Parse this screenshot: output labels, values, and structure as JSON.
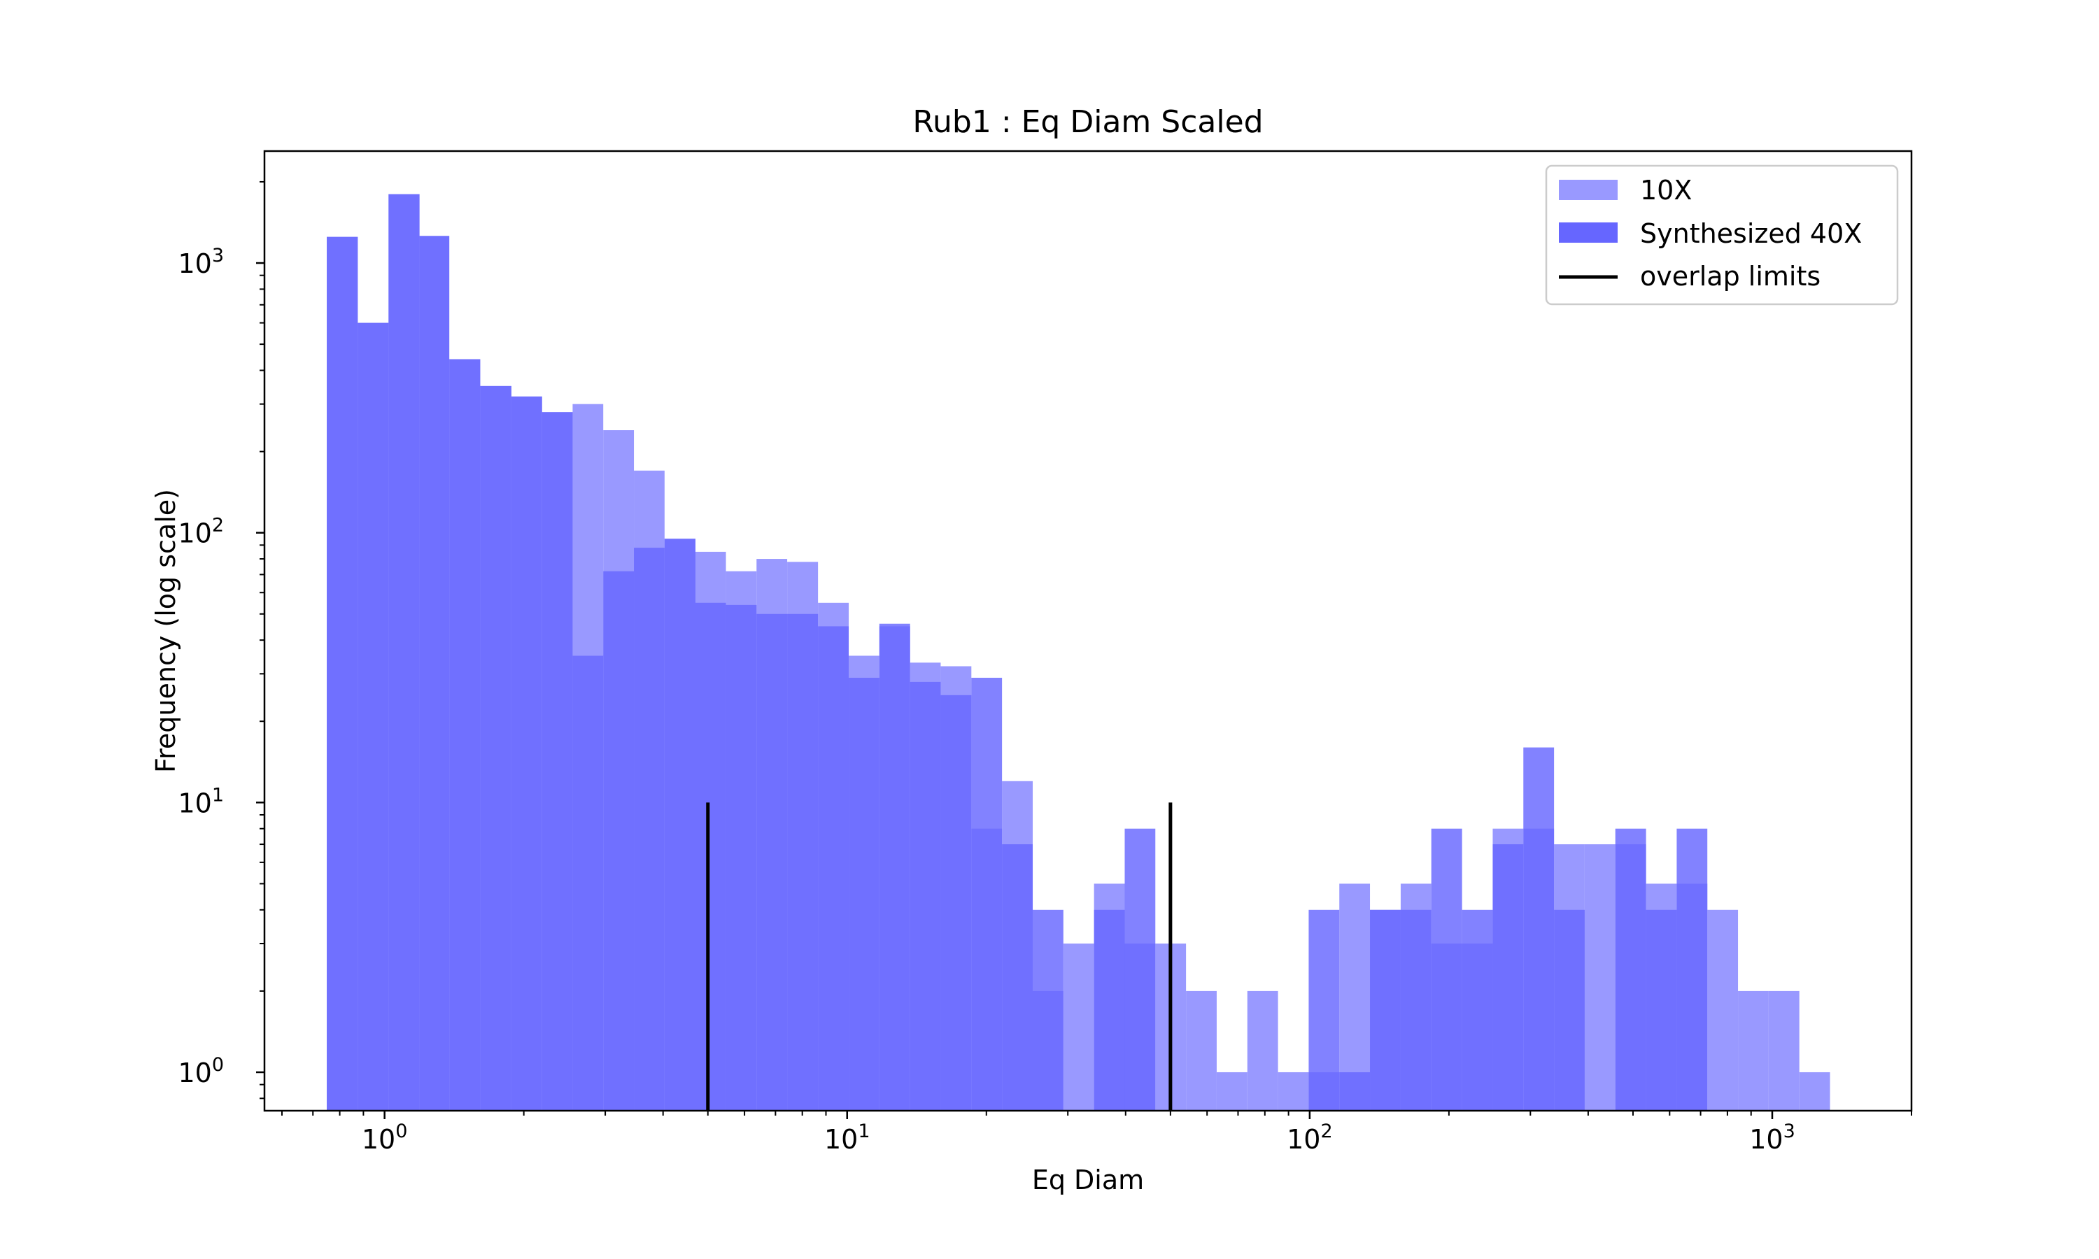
{
  "chart_data": {
    "type": "bar",
    "title": "Rub1 : Eq Diam Scaled",
    "xlabel": "Eq Diam",
    "ylabel": "Frequency (log scale)",
    "xscale": "log",
    "yscale": "log",
    "xlim": [
      0.55,
      2000
    ],
    "ylim": [
      0.72,
      2600
    ],
    "x_ticks": [
      {
        "value": 1,
        "base": "10",
        "exp": "0"
      },
      {
        "value": 10,
        "base": "10",
        "exp": "1"
      },
      {
        "value": 100,
        "base": "10",
        "exp": "2"
      },
      {
        "value": 1000,
        "base": "10",
        "exp": "3"
      }
    ],
    "y_ticks": [
      {
        "value": 1,
        "base": "10",
        "exp": "0"
      },
      {
        "value": 10,
        "base": "10",
        "exp": "1"
      },
      {
        "value": 100,
        "base": "10",
        "exp": "2"
      },
      {
        "value": 1000,
        "base": "10",
        "exp": "3"
      }
    ],
    "legend_position": "top-right",
    "series": [
      {
        "name": "10X",
        "color": "#9999ff",
        "bins": [
          [
            0.75,
            0.875,
            1250
          ],
          [
            0.875,
            1.02,
            600
          ],
          [
            1.02,
            1.19,
            1800
          ],
          [
            1.19,
            1.38,
            1260
          ],
          [
            1.38,
            1.61,
            440
          ],
          [
            1.61,
            1.88,
            350
          ],
          [
            1.88,
            2.19,
            320
          ],
          [
            2.19,
            2.55,
            280
          ],
          [
            2.55,
            2.97,
            300
          ],
          [
            2.97,
            3.46,
            240
          ],
          [
            3.46,
            4.03,
            170
          ],
          [
            4.03,
            4.7,
            95
          ],
          [
            4.7,
            5.47,
            85
          ],
          [
            5.47,
            6.37,
            72
          ],
          [
            6.37,
            7.42,
            80
          ],
          [
            7.42,
            8.65,
            78
          ],
          [
            8.65,
            10.08,
            55
          ],
          [
            10.08,
            11.74,
            35
          ],
          [
            11.74,
            13.68,
            45
          ],
          [
            13.68,
            15.93,
            33
          ],
          [
            15.93,
            18.56,
            32
          ],
          [
            18.56,
            21.62,
            8
          ],
          [
            21.62,
            25.19,
            12
          ],
          [
            25.19,
            29.34,
            2
          ],
          [
            29.34,
            34.18,
            3
          ],
          [
            34.18,
            39.82,
            5
          ],
          [
            39.82,
            46.38,
            3
          ],
          [
            46.38,
            54.03,
            3
          ],
          [
            54.03,
            62.94,
            2
          ],
          [
            62.94,
            73.32,
            1
          ],
          [
            73.32,
            85.41,
            2
          ],
          [
            85.41,
            99.5,
            1
          ],
          [
            99.5,
            115.9,
            1
          ],
          [
            115.9,
            135.0,
            5
          ],
          [
            135.0,
            157.3,
            4
          ],
          [
            157.3,
            183.2,
            5
          ],
          [
            183.2,
            213.5,
            3
          ],
          [
            213.5,
            248.7,
            3
          ],
          [
            248.7,
            289.7,
            8
          ],
          [
            289.7,
            337.5,
            8
          ],
          [
            337.5,
            393.1,
            7
          ],
          [
            393.1,
            457.9,
            7
          ],
          [
            457.9,
            533.5,
            7
          ],
          [
            533.5,
            621.5,
            5
          ],
          [
            621.5,
            723.9,
            5
          ],
          [
            723.9,
            843.3,
            4
          ],
          [
            843.3,
            982.4,
            2
          ],
          [
            982.4,
            1144.4,
            2
          ],
          [
            1144.4,
            1333.2,
            1
          ]
        ]
      },
      {
        "name": "Synthesized 40X",
        "color": "#6666ff",
        "bins": [
          [
            0.75,
            0.875,
            1250
          ],
          [
            0.875,
            1.02,
            600
          ],
          [
            1.02,
            1.19,
            1800
          ],
          [
            1.19,
            1.38,
            1260
          ],
          [
            1.38,
            1.61,
            440
          ],
          [
            1.61,
            1.88,
            350
          ],
          [
            1.88,
            2.19,
            320
          ],
          [
            2.19,
            2.55,
            280
          ],
          [
            2.55,
            2.97,
            35
          ],
          [
            2.97,
            3.46,
            72
          ],
          [
            3.46,
            4.03,
            88
          ],
          [
            4.03,
            4.7,
            95
          ],
          [
            4.7,
            5.47,
            55
          ],
          [
            5.47,
            6.37,
            54
          ],
          [
            6.37,
            7.42,
            50
          ],
          [
            7.42,
            8.65,
            50
          ],
          [
            8.65,
            10.08,
            45
          ],
          [
            10.08,
            11.74,
            29
          ],
          [
            11.74,
            13.68,
            46
          ],
          [
            13.68,
            15.93,
            28
          ],
          [
            15.93,
            18.56,
            25
          ],
          [
            18.56,
            21.62,
            29
          ],
          [
            21.62,
            25.19,
            7
          ],
          [
            25.19,
            29.34,
            4
          ],
          [
            34.18,
            39.82,
            4
          ],
          [
            39.82,
            46.38,
            8
          ],
          [
            99.5,
            115.9,
            4
          ],
          [
            115.9,
            135.0,
            1
          ],
          [
            135.0,
            157.3,
            4
          ],
          [
            157.3,
            183.2,
            4
          ],
          [
            183.2,
            213.5,
            8
          ],
          [
            213.5,
            248.7,
            4
          ],
          [
            248.7,
            289.7,
            7
          ],
          [
            289.7,
            337.5,
            16
          ],
          [
            337.5,
            393.1,
            4
          ],
          [
            457.9,
            533.5,
            8
          ],
          [
            533.5,
            621.5,
            4
          ],
          [
            621.5,
            723.9,
            8
          ]
        ]
      }
    ],
    "overlap_limits": {
      "name": "overlap limits",
      "color": "#000000",
      "x": [
        5,
        50
      ],
      "y": [
        0.72,
        10
      ]
    }
  }
}
